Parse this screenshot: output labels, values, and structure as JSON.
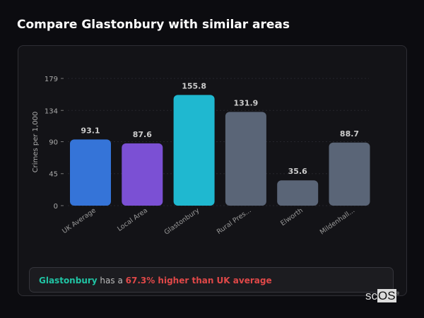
{
  "header": {
    "title": "Compare Glastonbury with similar areas"
  },
  "chart_data": {
    "type": "bar",
    "ylabel": "Crimes per 1,000",
    "xlabel": "",
    "ylim": [
      0,
      179
    ],
    "yticks": [
      0,
      45,
      90,
      134,
      179
    ],
    "grid": true,
    "categories": [
      "UK Average",
      "Local Area",
      "Glastonbury",
      "Rural Pres...",
      "Elworth",
      "Mildenhall..."
    ],
    "values": [
      93.1,
      87.6,
      155.8,
      131.9,
      35.6,
      88.7
    ],
    "value_labels": [
      "93.1",
      "87.6",
      "155.8",
      "131.9",
      "35.6",
      "88.7"
    ],
    "colors": [
      "#3574d8",
      "#7b50d4",
      "#1fb8d0",
      "#5a6577",
      "#5a6577",
      "#5a6577"
    ]
  },
  "summary": {
    "area": "Glastonbury",
    "connector": " has a ",
    "comparison": "67.3% higher than UK average"
  },
  "logo": {
    "text_a": "sc",
    "text_b": "OS",
    "mark": "®"
  },
  "colors": {
    "highlight": "#20c4a4",
    "negative": "#e04848"
  }
}
